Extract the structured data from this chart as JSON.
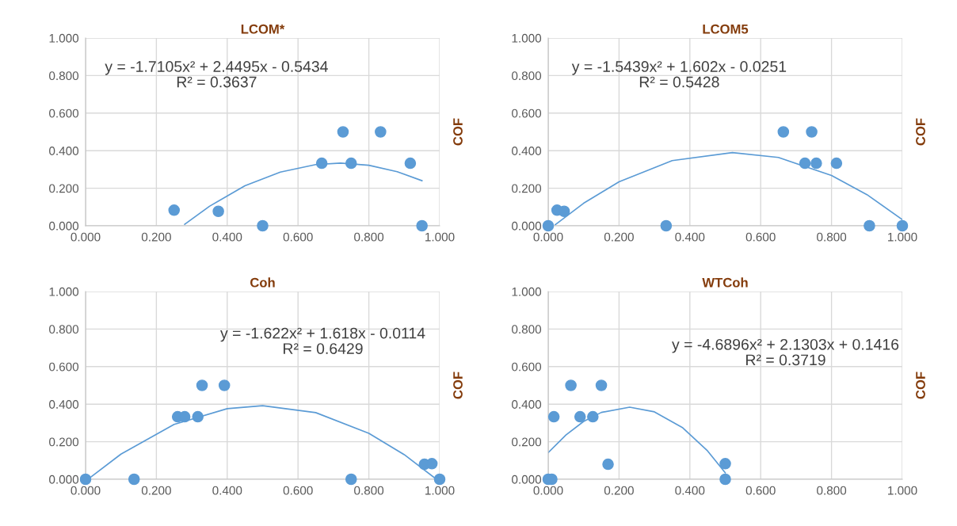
{
  "chart_data": [
    {
      "type": "scatter",
      "title": "LCOM*",
      "ylabel": "COF",
      "annotations": [
        "y = -1.7105x² + 2.4495x - 0.5434\nR² = 0.3637"
      ],
      "xlim": [
        0,
        1
      ],
      "ylim": [
        0,
        1
      ],
      "xticks": [
        {
          "value": 0,
          "label": "0.000"
        },
        {
          "value": 0.2,
          "label": "0.200"
        },
        {
          "value": 0.4,
          "label": "0.400"
        },
        {
          "value": 0.6,
          "label": "0.600"
        },
        {
          "value": 0.8,
          "label": "0.800"
        },
        {
          "value": 1,
          "label": "1.000"
        }
      ],
      "yticks": [
        {
          "value": 0,
          "label": "0.000"
        },
        {
          "value": 0.2,
          "label": "0.200"
        },
        {
          "value": 0.4,
          "label": "0.400"
        },
        {
          "value": 0.6,
          "label": "0.600"
        },
        {
          "value": 0.8,
          "label": "0.800"
        },
        {
          "value": 1,
          "label": "1.000"
        }
      ],
      "grid": true,
      "series": [
        {
          "marker": "circle",
          "color": "#5b9bd5",
          "x": [
            0.25,
            0.375,
            0.5,
            0.667,
            0.727,
            0.75,
            0.833,
            0.917,
            0.95
          ],
          "values": [
            0.083,
            0.077,
            0,
            0.333,
            0.5,
            0.333,
            0.5,
            0.333,
            0
          ]
        },
        {
          "type": "line",
          "color": "#5b9bd5",
          "x": [
            0.28,
            0.35,
            0.45,
            0.55,
            0.65,
            0.72,
            0.8,
            0.88,
            0.95
          ],
          "values": [
            0.008,
            0.104,
            0.213,
            0.286,
            0.326,
            0.334,
            0.322,
            0.288,
            0.24
          ]
        }
      ]
    },
    {
      "type": "scatter",
      "title": "LCOM5",
      "ylabel": "COF",
      "annotations": [
        "y = -1.5439x² + 1.602x - 0.0251\nR² = 0.5428"
      ],
      "xlim": [
        0,
        1
      ],
      "ylim": [
        0,
        1
      ],
      "xticks": [
        {
          "value": 0,
          "label": "0.000"
        },
        {
          "value": 0.2,
          "label": "0.200"
        },
        {
          "value": 0.4,
          "label": "0.400"
        },
        {
          "value": 0.6,
          "label": "0.600"
        },
        {
          "value": 0.8,
          "label": "0.800"
        },
        {
          "value": 1,
          "label": "1.000"
        }
      ],
      "yticks": [
        {
          "value": 0,
          "label": "0.000"
        },
        {
          "value": 0.2,
          "label": "0.200"
        },
        {
          "value": 0.4,
          "label": "0.400"
        },
        {
          "value": 0.6,
          "label": "0.600"
        },
        {
          "value": 0.8,
          "label": "0.800"
        },
        {
          "value": 1,
          "label": "1.000"
        }
      ],
      "grid": true,
      "series": [
        {
          "marker": "circle",
          "color": "#5b9bd5",
          "x": [
            0,
            0.025,
            0.045,
            0.333,
            0.664,
            0.744,
            0.725,
            0.757,
            0.814,
            0.907,
            1.0
          ],
          "values": [
            0,
            0.083,
            0.077,
            0,
            0.5,
            0.5,
            0.333,
            0.333,
            0.333,
            0,
            0
          ]
        },
        {
          "type": "line",
          "color": "#5b9bd5",
          "x": [
            0.02,
            0.1,
            0.2,
            0.35,
            0.52,
            0.65,
            0.8,
            0.9,
            1.0
          ],
          "values": [
            0.006,
            0.12,
            0.234,
            0.347,
            0.39,
            0.364,
            0.268,
            0.166,
            0.033
          ]
        }
      ]
    },
    {
      "type": "scatter",
      "title": "Coh",
      "ylabel": "COF",
      "annotations": [
        "y = -1.622x² + 1.618x - 0.0114\nR² = 0.6429"
      ],
      "xlim": [
        0,
        1
      ],
      "ylim": [
        0,
        1
      ],
      "xticks": [
        {
          "value": 0,
          "label": "0.000"
        },
        {
          "value": 0.2,
          "label": "0.200"
        },
        {
          "value": 0.4,
          "label": "0.400"
        },
        {
          "value": 0.6,
          "label": "0.600"
        },
        {
          "value": 0.8,
          "label": "0.800"
        },
        {
          "value": 1,
          "label": "1.000"
        }
      ],
      "yticks": [
        {
          "value": 0,
          "label": "0.000"
        },
        {
          "value": 0.2,
          "label": "0.200"
        },
        {
          "value": 0.4,
          "label": "0.400"
        },
        {
          "value": 0.6,
          "label": "0.600"
        },
        {
          "value": 0.8,
          "label": "0.800"
        },
        {
          "value": 1,
          "label": "1.000"
        }
      ],
      "grid": true,
      "series": [
        {
          "marker": "circle",
          "color": "#5b9bd5",
          "x": [
            0,
            0.137,
            0.26,
            0.28,
            0.317,
            0.329,
            0.392,
            0.75,
            0.957,
            0.978,
            1.0
          ],
          "values": [
            0,
            0,
            0.333,
            0.333,
            0.333,
            0.5,
            0.5,
            0,
            0.08,
            0.083,
            0
          ]
        },
        {
          "type": "line",
          "color": "#5b9bd5",
          "x": [
            0.01,
            0.1,
            0.25,
            0.4,
            0.5,
            0.65,
            0.8,
            0.9,
            0.99
          ],
          "values": [
            0.005,
            0.134,
            0.292,
            0.376,
            0.392,
            0.355,
            0.245,
            0.131,
            0.001
          ]
        }
      ]
    },
    {
      "type": "scatter",
      "title": "WTCoh",
      "ylabel": "COF",
      "annotations": [
        "y = -4.6896x² + 2.1303x + 0.1416\nR² = 0.3719"
      ],
      "xlim": [
        0,
        1
      ],
      "ylim": [
        0,
        1
      ],
      "xticks": [
        {
          "value": 0,
          "label": "0.000"
        },
        {
          "value": 0.2,
          "label": "0.200"
        },
        {
          "value": 0.4,
          "label": "0.400"
        },
        {
          "value": 0.6,
          "label": "0.600"
        },
        {
          "value": 0.8,
          "label": "0.800"
        },
        {
          "value": 1,
          "label": "1.000"
        }
      ],
      "yticks": [
        {
          "value": 0,
          "label": "0.000"
        },
        {
          "value": 0.2,
          "label": "0.200"
        },
        {
          "value": 0.4,
          "label": "0.400"
        },
        {
          "value": 0.6,
          "label": "0.600"
        },
        {
          "value": 0.8,
          "label": "0.800"
        },
        {
          "value": 1,
          "label": "1.000"
        }
      ],
      "grid": true,
      "series": [
        {
          "marker": "circle",
          "color": "#5b9bd5",
          "x": [
            0,
            0.01,
            0.016,
            0.064,
            0.09,
            0.126,
            0.15,
            0.169,
            0.5,
            0.5
          ],
          "values": [
            0,
            0,
            0.333,
            0.5,
            0.333,
            0.333,
            0.5,
            0.08,
            0.083,
            0
          ]
        },
        {
          "type": "line",
          "color": "#5b9bd5",
          "x": [
            0,
            0.05,
            0.1,
            0.15,
            0.23,
            0.3,
            0.38,
            0.45,
            0.5
          ],
          "values": [
            0.142,
            0.236,
            0.308,
            0.356,
            0.384,
            0.359,
            0.274,
            0.151,
            0.034
          ]
        }
      ]
    }
  ]
}
